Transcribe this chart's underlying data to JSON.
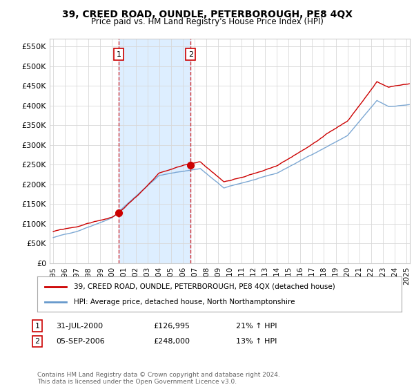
{
  "title": "39, CREED ROAD, OUNDLE, PETERBOROUGH, PE8 4QX",
  "subtitle": "Price paid vs. HM Land Registry's House Price Index (HPI)",
  "legend_label_red": "39, CREED ROAD, OUNDLE, PETERBOROUGH, PE8 4QX (detached house)",
  "legend_label_blue": "HPI: Average price, detached house, North Northamptonshire",
  "footer": "Contains HM Land Registry data © Crown copyright and database right 2024.\nThis data is licensed under the Open Government Licence v3.0.",
  "transaction1_date": "31-JUL-2000",
  "transaction1_price": "£126,995",
  "transaction1_hpi": "21% ↑ HPI",
  "transaction1_x": 2000.58,
  "transaction1_y": 126995,
  "transaction2_date": "05-SEP-2006",
  "transaction2_price": "£248,000",
  "transaction2_hpi": "13% ↑ HPI",
  "transaction2_x": 2006.68,
  "transaction2_y": 248000,
  "vline1_x": 2000.58,
  "vline2_x": 2006.68,
  "ylim": [
    0,
    570000
  ],
  "yticks": [
    0,
    50000,
    100000,
    150000,
    200000,
    250000,
    300000,
    350000,
    400000,
    450000,
    500000,
    550000
  ],
  "xlim_start": 1994.7,
  "xlim_end": 2025.3,
  "background_color": "#ffffff",
  "plot_bg_color": "#ffffff",
  "grid_color": "#d8d8d8",
  "red_color": "#cc0000",
  "blue_color": "#6699cc",
  "shade_color": "#ddeeff"
}
